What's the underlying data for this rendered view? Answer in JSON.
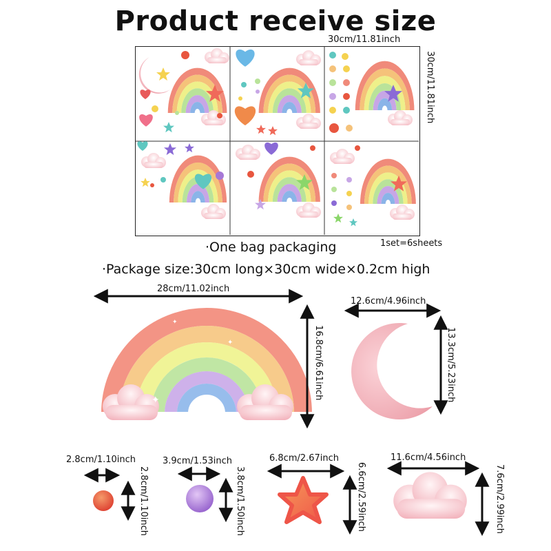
{
  "title": "Product receive size",
  "sheet": {
    "width_label": "30cm/11.81inch",
    "height_label": "30cm/11.81inch",
    "set_label": "1set=6sheets"
  },
  "packaging": "·One bag packaging",
  "package_size": "·Package size:30cm long×30cm wide×0.2cm high",
  "items": {
    "rainbow": {
      "width": "28cm/11.02inch",
      "height": "16.8cm/6.61inch"
    },
    "moon": {
      "width": "12.6cm/4.96inch",
      "height": "13.3cm/5.23inch"
    },
    "red_dot": {
      "width": "2.8cm/1.10inch",
      "height": "2.8cm/1.10inch"
    },
    "purple_dot": {
      "width": "3.9cm/1.53inch",
      "height": "3.8cm/1.50inch"
    },
    "star": {
      "width": "6.8cm/2.67inch",
      "height": "6.6cm/2.59inch"
    },
    "cloud": {
      "width": "11.6cm/4.56inch",
      "height": "7.6cm/2.99inch"
    }
  },
  "colors": {
    "rainbow": [
      "#f08a7a",
      "#f5c27a",
      "#eef08a",
      "#b9e39a",
      "#c7a6e6",
      "#8ab4e8"
    ],
    "cloud": "#f7c9cf",
    "moon": "#f4b8c0",
    "red_dot": "#e8563f",
    "purple_dot": "#a678d6",
    "star": "#f26b4a",
    "arrow": "#111111"
  },
  "icons": [
    "rainbow-icon",
    "moon-icon",
    "cloud-icon",
    "star-icon",
    "heart-icon",
    "dot-icon"
  ]
}
